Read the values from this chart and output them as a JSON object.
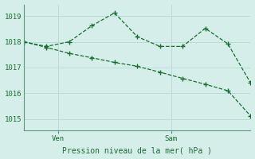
{
  "xlabel": "Pression niveau de la mer( hPa )",
  "background_color": "#d5eeea",
  "grid_color": "#b8ddd8",
  "line_color": "#1a6e2e",
  "axis_color": "#5a9a7a",
  "ylim": [
    1014.55,
    1019.45
  ],
  "xlim": [
    0,
    10
  ],
  "yticks": [
    1015,
    1016,
    1017,
    1018,
    1019
  ],
  "xtick_positions": [
    1.5,
    6.5
  ],
  "xtick_labels": [
    "Ven",
    "Sam"
  ],
  "line1_x": [
    0,
    1,
    2,
    3,
    4,
    5,
    6,
    7,
    8,
    9,
    10
  ],
  "line1_y": [
    1018.0,
    1017.82,
    1018.0,
    1018.62,
    1019.12,
    1018.2,
    1017.82,
    1017.82,
    1018.52,
    1017.92,
    1016.4
  ],
  "line2_x": [
    0,
    1,
    2,
    3,
    4,
    5,
    6,
    7,
    8,
    9,
    10
  ],
  "line2_y": [
    1018.0,
    1017.78,
    1017.55,
    1017.38,
    1017.2,
    1017.05,
    1016.82,
    1016.58,
    1016.35,
    1016.1,
    1015.12
  ]
}
